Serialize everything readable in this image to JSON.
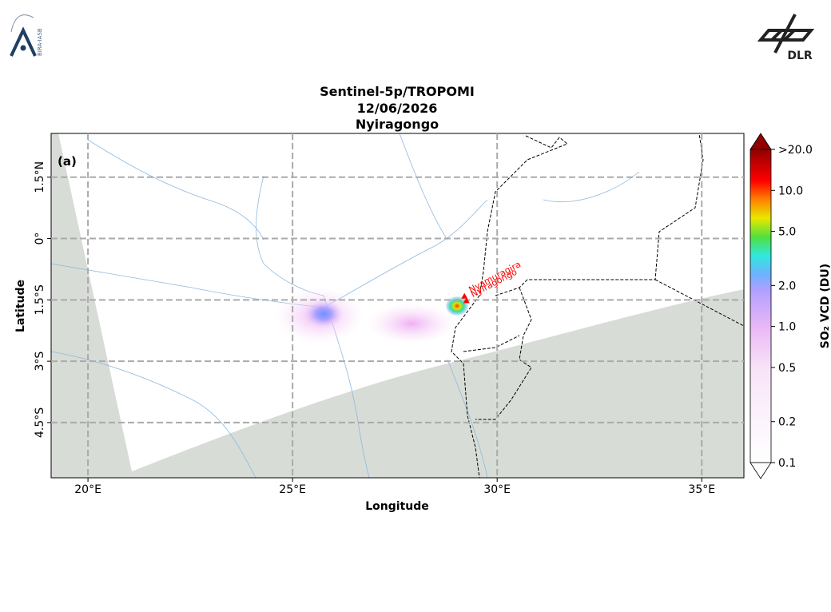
{
  "header": {
    "logo_left": "BIRA-IASB",
    "logo_right": "DLR"
  },
  "chart_data": {
    "type": "map",
    "title": [
      "Sentinel-5p/TROPOMI",
      "12/06/2026",
      "Nyiragongo"
    ],
    "panel_label": "(a)",
    "x_label": "Longitude",
    "y_label": "Latitude",
    "xlim": [
      19.1,
      36.03
    ],
    "ylim": [
      -5.85,
      2.57
    ],
    "xticks": [
      {
        "value": 20,
        "label": "20°E"
      },
      {
        "value": 25,
        "label": "25°E"
      },
      {
        "value": 30,
        "label": "30°E"
      },
      {
        "value": 35,
        "label": "35°E"
      }
    ],
    "yticks": [
      {
        "value": 1.5,
        "label": "1.5°N"
      },
      {
        "value": 0,
        "label": "0°"
      },
      {
        "value": -1.5,
        "label": "1.5°S"
      },
      {
        "value": -3,
        "label": "3°S"
      },
      {
        "value": -4.5,
        "label": "4.5°S"
      }
    ],
    "grid": true,
    "annotations": [
      {
        "text": "Nyamuragira",
        "lon": 29.2,
        "lat": -1.41,
        "color": "#ff0000"
      },
      {
        "text": "Nyiragongo",
        "lon": 29.25,
        "lat": -1.52,
        "color": "#ff0000"
      }
    ],
    "colorbar": {
      "label": "SO₂ VCD (DU)",
      "scale": "log",
      "lim": [
        0.1,
        20
      ],
      "ticks": [
        0.1,
        0.2,
        0.5,
        {
          "value": 1,
          "label": "1.0"
        },
        {
          "value": 2,
          "label": "2.0"
        },
        {
          "value": 5,
          "label": "5.0"
        },
        {
          "value": 10,
          "label": "10.0"
        },
        {
          "value": 20,
          "label": ">20.0"
        }
      ]
    }
  }
}
